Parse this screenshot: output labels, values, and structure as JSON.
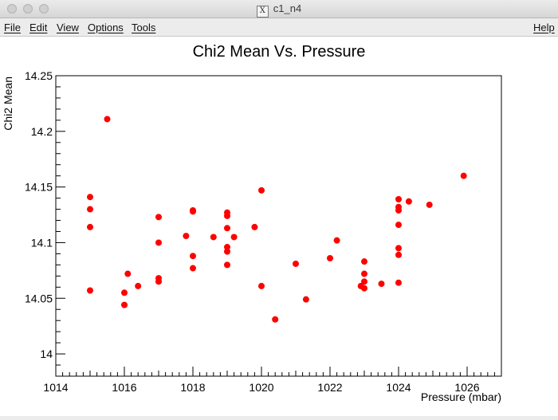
{
  "window": {
    "title": "c1_n4",
    "app_icon": "x11-icon",
    "controls": [
      {
        "name": "close-button"
      },
      {
        "name": "minimize-button"
      },
      {
        "name": "zoom-button"
      }
    ]
  },
  "menubar": {
    "items": [
      {
        "id": "file",
        "label": "File"
      },
      {
        "id": "edit",
        "label": "Edit"
      },
      {
        "id": "view",
        "label": "View"
      },
      {
        "id": "options",
        "label": "Options"
      },
      {
        "id": "tools",
        "label": "Tools"
      }
    ],
    "help_label": "Help"
  },
  "chart_data": {
    "type": "scatter",
    "title": "Chi2 Mean Vs. Pressure",
    "xlabel": "Pressure (mbar)",
    "ylabel": "Chi2 Mean",
    "xlim": [
      1014,
      1027
    ],
    "ylim": [
      13.98,
      14.25
    ],
    "xticks": [
      1014,
      1016,
      1018,
      1020,
      1022,
      1024,
      1026
    ],
    "yticks": [
      14,
      14.05,
      14.1,
      14.15,
      14.2,
      14.25
    ],
    "ytick_labels": [
      "14",
      "14.05",
      "14.1",
      "14.15",
      "14.2",
      "14.25"
    ],
    "marker_color": "#ff0000",
    "points": [
      [
        1015.0,
        14.141
      ],
      [
        1015.0,
        14.13
      ],
      [
        1015.0,
        14.114
      ],
      [
        1015.0,
        14.057
      ],
      [
        1015.5,
        14.211
      ],
      [
        1016.0,
        14.055
      ],
      [
        1016.0,
        14.044
      ],
      [
        1016.1,
        14.072
      ],
      [
        1016.4,
        14.061
      ],
      [
        1017.0,
        14.123
      ],
      [
        1017.0,
        14.1
      ],
      [
        1017.0,
        14.068
      ],
      [
        1017.0,
        14.065
      ],
      [
        1017.8,
        14.106
      ],
      [
        1018.0,
        14.129
      ],
      [
        1018.0,
        14.128
      ],
      [
        1018.0,
        14.088
      ],
      [
        1018.0,
        14.077
      ],
      [
        1018.6,
        14.105
      ],
      [
        1019.0,
        14.127
      ],
      [
        1019.0,
        14.124
      ],
      [
        1019.0,
        14.113
      ],
      [
        1019.0,
        14.096
      ],
      [
        1019.0,
        14.092
      ],
      [
        1019.0,
        14.08
      ],
      [
        1019.2,
        14.105
      ],
      [
        1019.8,
        14.114
      ],
      [
        1020.0,
        14.147
      ],
      [
        1020.0,
        14.061
      ],
      [
        1020.4,
        14.031
      ],
      [
        1021.0,
        14.081
      ],
      [
        1021.3,
        14.049
      ],
      [
        1022.0,
        14.086
      ],
      [
        1022.2,
        14.102
      ],
      [
        1022.9,
        14.061
      ],
      [
        1023.0,
        14.083
      ],
      [
        1023.0,
        14.072
      ],
      [
        1023.0,
        14.065
      ],
      [
        1023.0,
        14.059
      ],
      [
        1023.5,
        14.063
      ],
      [
        1024.0,
        14.139
      ],
      [
        1024.0,
        14.132
      ],
      [
        1024.0,
        14.129
      ],
      [
        1024.0,
        14.116
      ],
      [
        1024.0,
        14.095
      ],
      [
        1024.0,
        14.089
      ],
      [
        1024.0,
        14.064
      ],
      [
        1024.3,
        14.137
      ],
      [
        1024.9,
        14.134
      ],
      [
        1025.9,
        14.16
      ]
    ]
  }
}
